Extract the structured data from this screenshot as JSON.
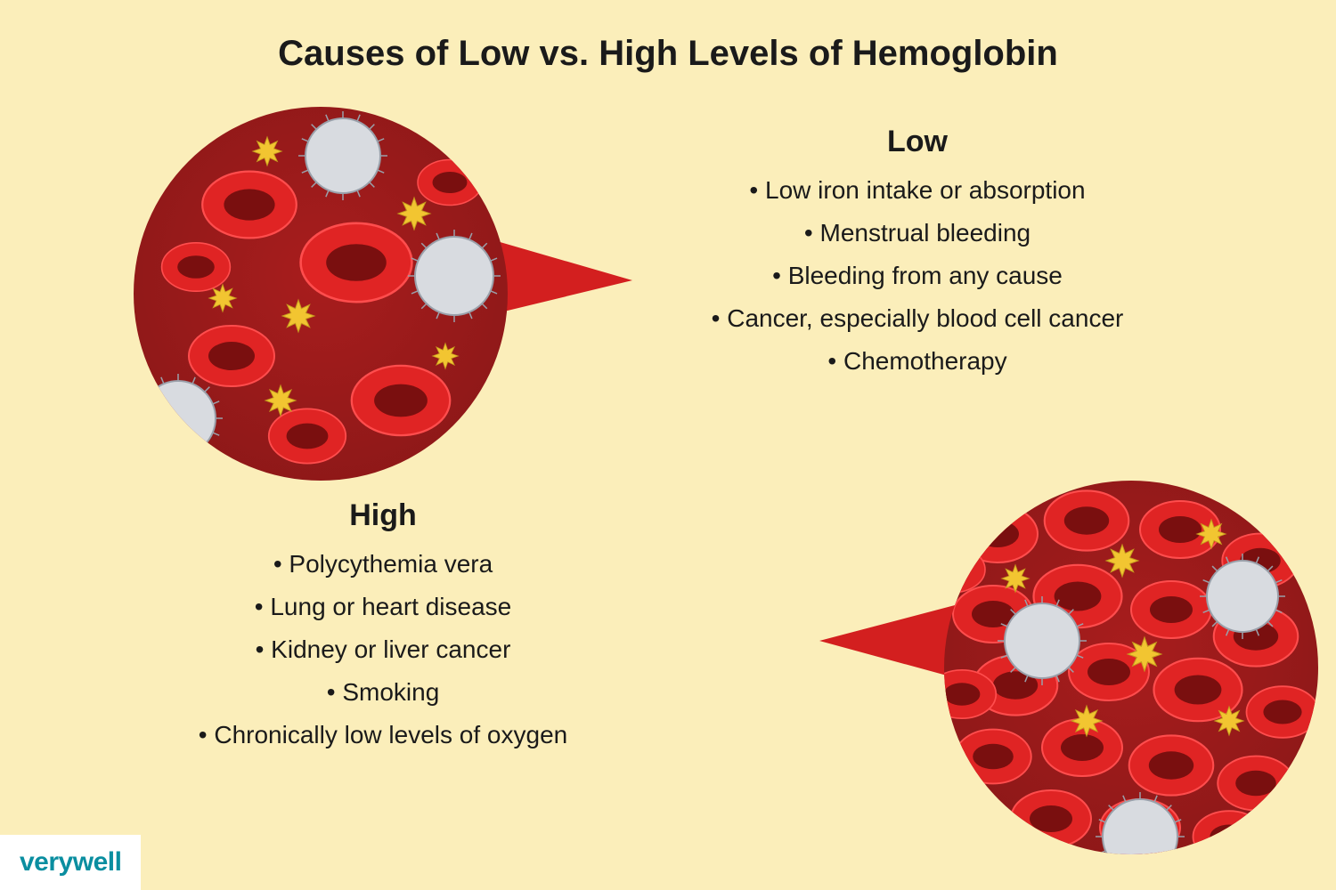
{
  "title": "Causes of Low vs. High Levels of Hemoglobin",
  "title_fontsize": 40,
  "title_color": "#1a1a1a",
  "background_color": "#fbeeba",
  "text_color": "#1a1a1a",
  "heading_fontsize": 34,
  "bullet_fontsize": 28,
  "low": {
    "heading": "Low",
    "items": [
      "Low iron intake or absorption",
      "Menstrual bleeding",
      "Bleeding from any cause",
      "Cancer, especially blood cell cancer",
      "Chemotherapy"
    ]
  },
  "high": {
    "heading": "High",
    "items": [
      "Polycythemia vera",
      "Lung or heart disease",
      "Kidney or liver cancer",
      "Smoking",
      "Chronically low levels of oxygen"
    ]
  },
  "illustration": {
    "circle_diameter": 420,
    "blood_bg_dark": "#8d1818",
    "blood_bg_mid": "#a81d1d",
    "red_cell_outer": "#e02424",
    "red_cell_inner": "#7a0f0f",
    "red_cell_highlight": "#ff4d4d",
    "white_cell_fill": "#d8dbe0",
    "white_cell_stroke": "#9aa0aa",
    "platelet_fill": "#f2c531",
    "platelet_stroke": "#c59b1e",
    "pointer_fill": "#d31f1f",
    "low_density_red_cells": 7,
    "high_density_red_cells": 22,
    "white_cells_per_circle": 3,
    "platelets_per_circle": 6
  },
  "logo": {
    "text": "verywell",
    "fontsize": 30,
    "color": "#0a8ea0",
    "bg": "#ffffff"
  }
}
